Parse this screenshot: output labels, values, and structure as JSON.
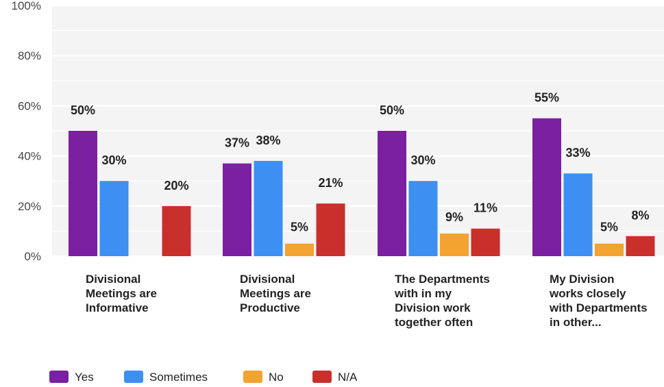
{
  "chart_data": {
    "type": "bar",
    "title": "",
    "xlabel": "",
    "ylabel": "",
    "ylim": [
      0,
      100
    ],
    "ytick_values": [
      0,
      20,
      40,
      60,
      80,
      100
    ],
    "ytick_labels": [
      "0%",
      "20%",
      "40%",
      "60%",
      "80%",
      "100%"
    ],
    "grid": true,
    "legend_position": "bottom-left",
    "categories": [
      [
        "Divisional",
        "Meetings are",
        "Informative"
      ],
      [
        "Divisional",
        "Meetings are",
        "Productive"
      ],
      [
        "The Departments",
        "with in my",
        "Division work",
        "together often"
      ],
      [
        "My Division",
        "works closely",
        "with Departments",
        "in other..."
      ]
    ],
    "series": [
      {
        "name": "Yes",
        "color": "#7a20a0",
        "values": [
          50,
          37,
          50,
          55
        ],
        "labels": [
          "50%",
          "37%",
          "50%",
          "55%"
        ]
      },
      {
        "name": "Sometimes",
        "color": "#3d8ff2",
        "values": [
          30,
          38,
          30,
          33
        ],
        "labels": [
          "30%",
          "38%",
          "30%",
          "33%"
        ]
      },
      {
        "name": "No",
        "color": "#f2a330",
        "values": [
          0,
          5,
          9,
          5
        ],
        "labels": [
          null,
          "5%",
          "9%",
          "5%"
        ]
      },
      {
        "name": "N/A",
        "color": "#c9302c",
        "values": [
          20,
          21,
          11,
          8
        ],
        "labels": [
          "20%",
          "21%",
          "11%",
          "8%"
        ]
      }
    ]
  }
}
